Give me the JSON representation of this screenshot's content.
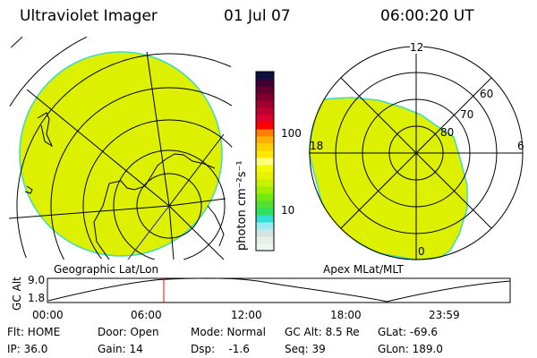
{
  "header": {
    "title": "Ultraviolet Imager",
    "date": "01 Jul 07",
    "time": "06:00:20 UT"
  },
  "colorbar": {
    "label": "photon cm⁻²s⁻¹",
    "ticks": [
      "100",
      "10"
    ],
    "colors": [
      "#eef6f0",
      "#e4f0e8",
      "#d4e4e0",
      "#98ecf0",
      "#30e0d8",
      "#30e060",
      "#50e030",
      "#70ea10",
      "#a0ee00",
      "#c8f000",
      "#e6f200",
      "#f4fa00",
      "#ffff80",
      "#ffe800",
      "#ffd000",
      "#ffb000",
      "#ff8000",
      "#ff0000",
      "#e00030",
      "#c00030",
      "#a00030",
      "#800030",
      "#600030",
      "#400030",
      "#101040"
    ]
  },
  "left_map": {
    "caption": "Geographic Lat/Lon"
  },
  "right_map": {
    "caption": "Apex MLat/MLT",
    "mlt_labels": [
      "12",
      "18",
      "6",
      "0"
    ],
    "mlat_labels": [
      "60",
      "70",
      "80"
    ]
  },
  "altitude_plot": {
    "ylabel": "GC Alt",
    "yticks": [
      "9.0",
      "1.8"
    ],
    "xticks": [
      "00:00",
      "06:00",
      "12:00",
      "18:00",
      "23:59"
    ],
    "current_time_fraction": 0.25
  },
  "status": {
    "row1": [
      "Flt: HOME",
      "Door: Open",
      "Mode: Normal",
      "GC Alt: 8.5 Re",
      "GLat: -69.6"
    ],
    "row2": [
      "IP: 36.0",
      "Gain: 14",
      "Dsp:    -1.6",
      "Seq: 39",
      "GLon: 189.0"
    ]
  },
  "colors": {
    "fill": "#dcf000",
    "edge": "#40d8c0",
    "marker": "#ff0000"
  }
}
